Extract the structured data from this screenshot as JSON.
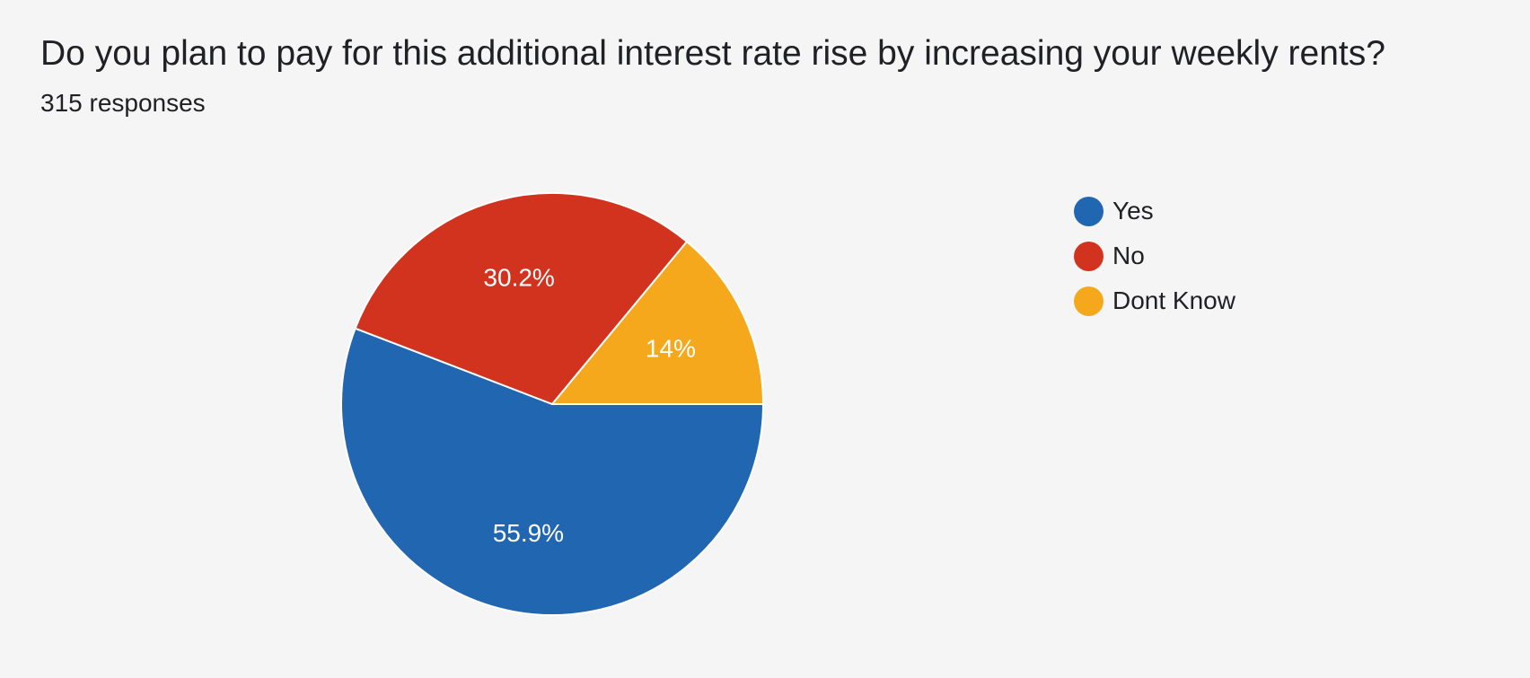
{
  "question": {
    "title": "Do you plan to pay for this additional interest rate rise by increasing your weekly rents?",
    "responses": "315 responses"
  },
  "chart_data": {
    "type": "pie",
    "categories": [
      "Yes",
      "No",
      "Dont Know"
    ],
    "values": [
      55.9,
      30.2,
      14
    ],
    "labels": [
      "55.9%",
      "30.2%",
      "14%"
    ],
    "colors": [
      "#2166b1",
      "#d1331f",
      "#f5a81c"
    ],
    "legend_position": "right"
  }
}
